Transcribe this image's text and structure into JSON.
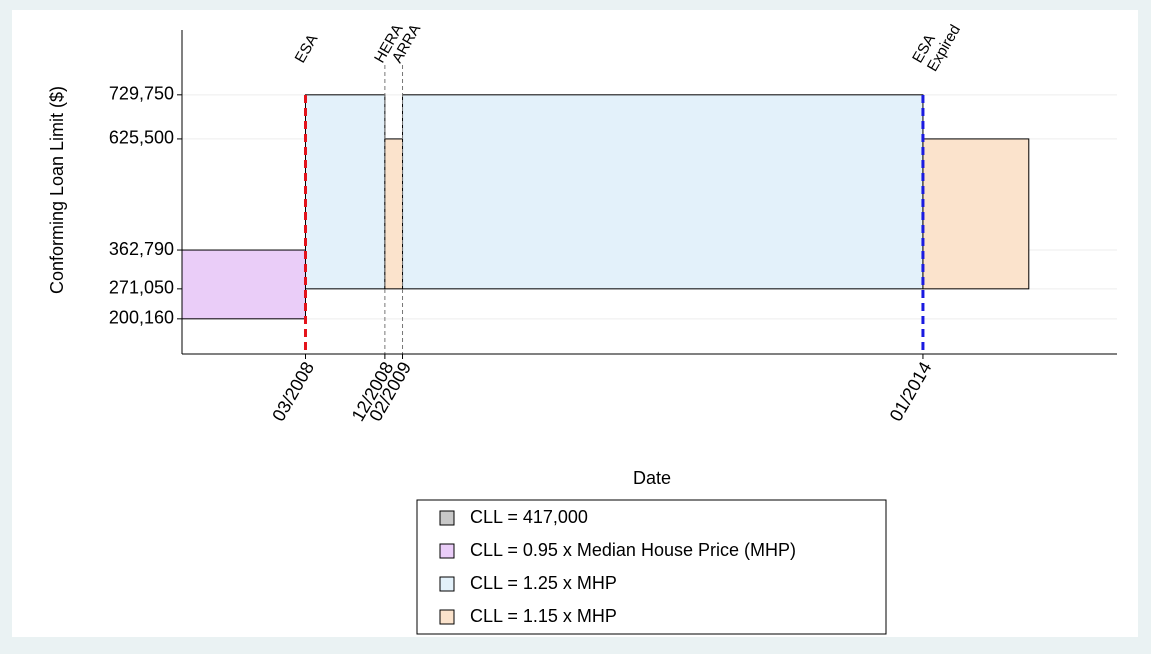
{
  "chart_data": {
    "type": "timeline",
    "y_label": "Conforming Loan Limit ($)",
    "x_label": "Date",
    "xlim": [
      "01/2007",
      "11/2015"
    ],
    "xticks": [
      "03/2008",
      "12/2008",
      "02/2009",
      "01/2014"
    ],
    "ylim": [
      117000,
      883000
    ],
    "yticks": [
      {
        "value": 200160,
        "label": "200,160"
      },
      {
        "value": 271050,
        "label": "271,050"
      },
      {
        "value": 362790,
        "label": "362,790"
      },
      {
        "value": 625500,
        "label": "625,500"
      },
      {
        "value": 729750,
        "label": "729,750"
      }
    ],
    "grid": true,
    "series": [
      {
        "name": "CLL = 417,000",
        "color": "#c8c8c8",
        "spans": []
      },
      {
        "name": "CLL = 0.95 x Median House Price (MHP)",
        "color": "#eacdf8",
        "spans": [
          {
            "start": "01/2007",
            "end": "03/2008",
            "low": 200160,
            "high": 362790
          }
        ]
      },
      {
        "name": "CLL = 1.25 x MHP",
        "color": "#e3f1fa",
        "spans": [
          {
            "start": "03/2008",
            "end": "12/2008",
            "low": 271050,
            "high": 729750
          },
          {
            "start": "02/2009",
            "end": "01/2014",
            "low": 271050,
            "high": 729750
          }
        ]
      },
      {
        "name": "CLL = 1.15 x MHP",
        "color": "#fbe3cc",
        "spans": [
          {
            "start": "12/2008",
            "end": "02/2009",
            "low": 271050,
            "high": 625500
          },
          {
            "start": "01/2014",
            "end": "01/2015",
            "low": 271050,
            "high": 625500
          }
        ]
      }
    ],
    "events": [
      {
        "date": "03/2008",
        "label": [
          "ESA"
        ],
        "color": "#e4131b",
        "bold": true
      },
      {
        "date": "12/2008",
        "label": [
          "HERA"
        ],
        "color": "#777777",
        "bold": false
      },
      {
        "date": "02/2009",
        "label": [
          "ARRA"
        ],
        "color": "#777777",
        "bold": false
      },
      {
        "date": "01/2014",
        "label": [
          "ESA",
          "Expired"
        ],
        "color": "#1a1ae0",
        "bold": true
      }
    ]
  }
}
